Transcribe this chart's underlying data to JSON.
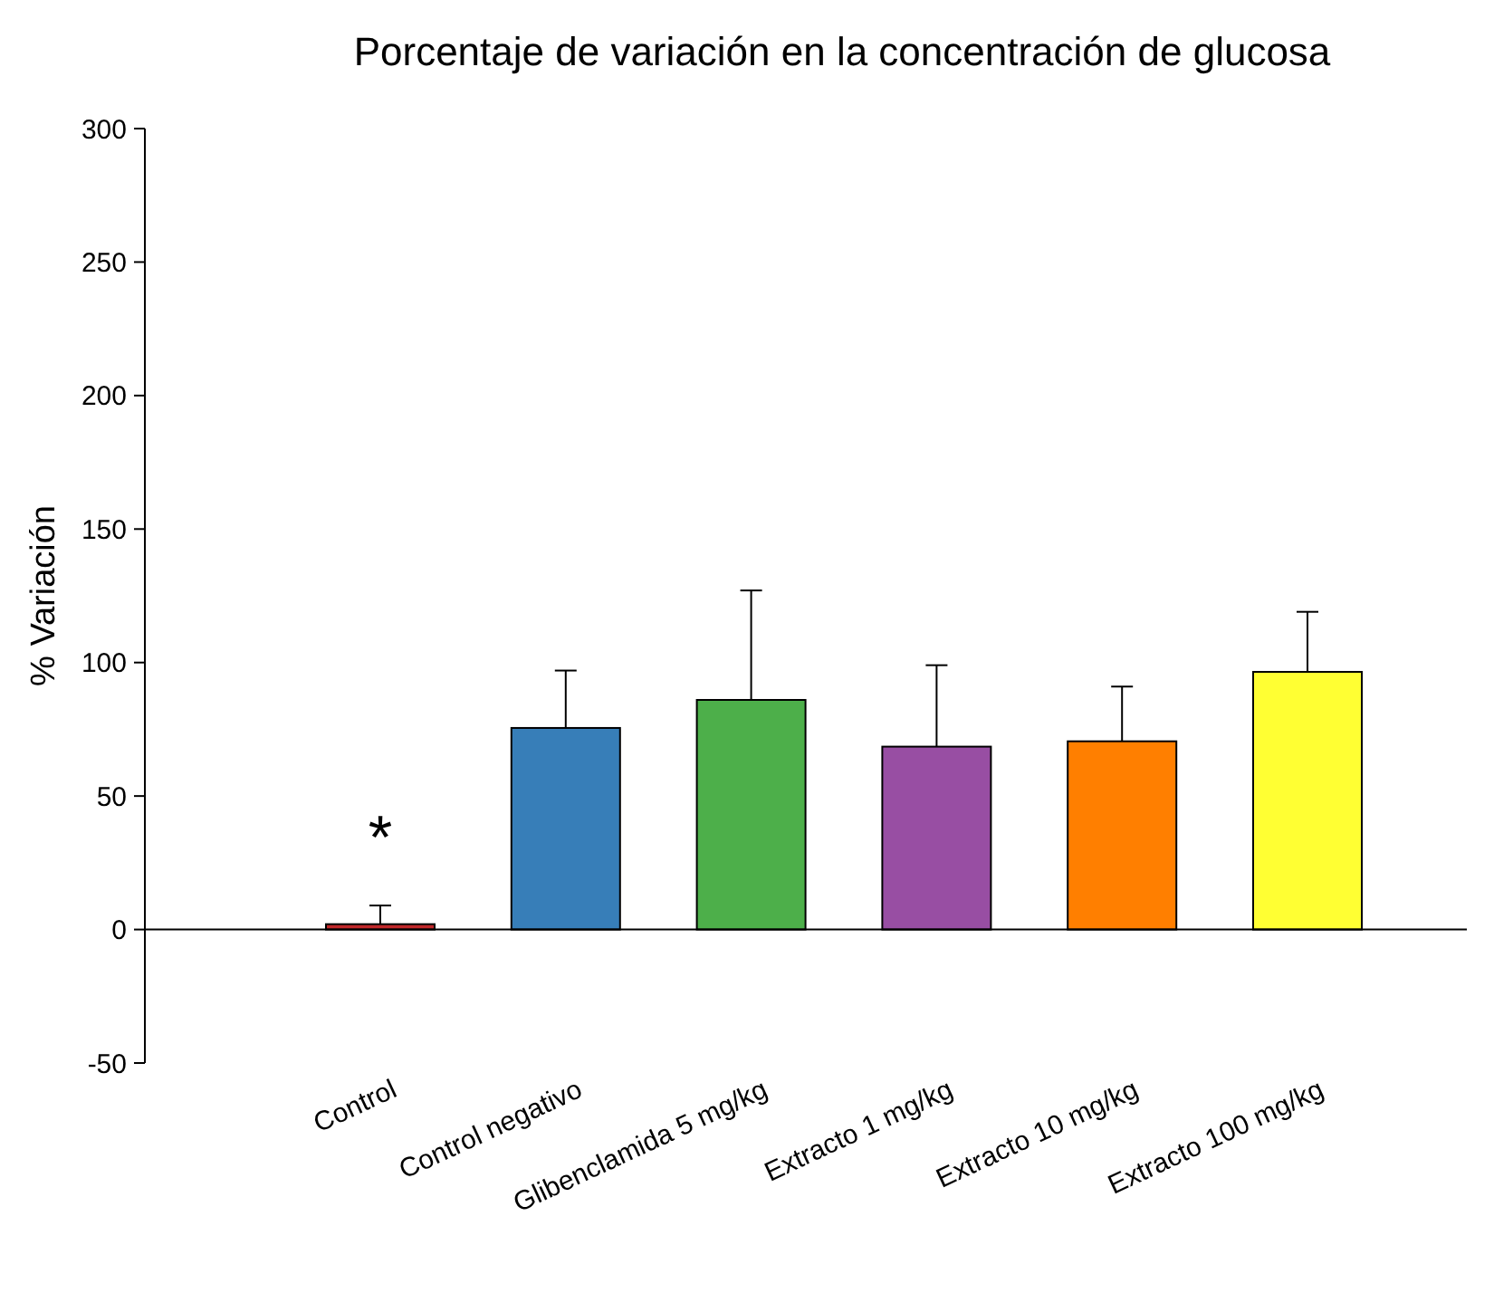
{
  "chart_data": {
    "type": "bar",
    "title": "Porcentaje de variación en la concentración de glucosa",
    "ylabel": "% Variación",
    "categories": [
      "Control",
      "Control negativo",
      "Glibenclamida 5 mg/kg",
      "Extracto 1 mg/kg",
      "Extracto 10 mg/kg",
      "Extracto 100 mg/kg"
    ],
    "values": [
      2,
      75.5,
      86,
      68.5,
      70.5,
      96.5
    ],
    "colors": [
      "#c0282a",
      "#377eb8",
      "#4daf4a",
      "#984ea3",
      "#ff7f00",
      "#ffff33"
    ],
    "errors": [
      [
        2,
        9
      ],
      [
        75.5,
        97
      ],
      [
        86,
        127
      ],
      [
        68.5,
        99
      ],
      [
        70.5,
        91
      ],
      [
        96.5,
        119
      ]
    ],
    "ylim": [
      -50,
      300
    ],
    "yticks": [
      -50,
      0,
      50,
      100,
      150,
      200,
      250,
      300
    ],
    "annotations": [
      "*"
    ]
  }
}
